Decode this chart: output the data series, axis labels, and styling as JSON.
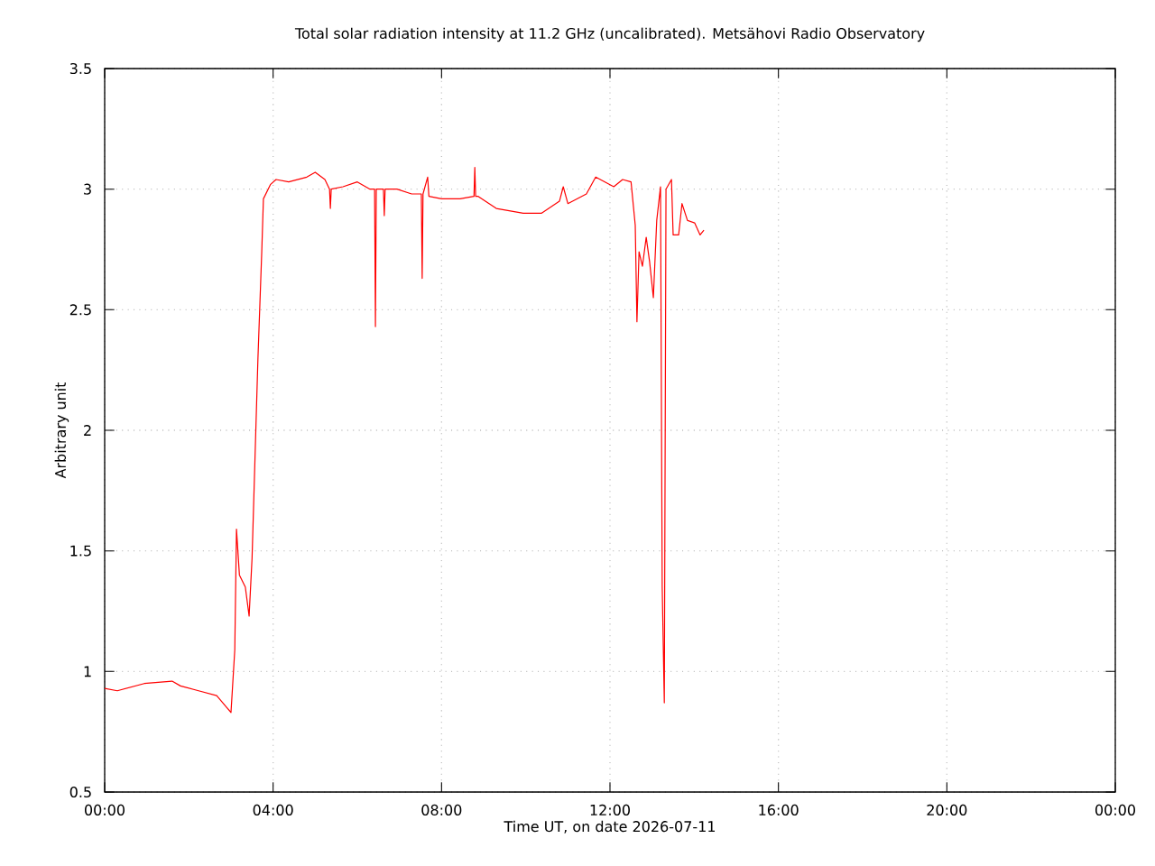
{
  "chart_data": {
    "type": "line",
    "title": "Total solar radiation intensity at 11.2 GHz (uncalibrated). Metsähovi Radio Observatory",
    "xlabel": "Time UT, on date 2026-07-11",
    "ylabel": "Arbitrary unit",
    "x": [
      0,
      0.3,
      0.94,
      1.6,
      1.8,
      2.23,
      2.66,
      2.9,
      3.0,
      3.09,
      3.13,
      3.2,
      3.34,
      3.43,
      3.5,
      3.64,
      3.73,
      3.77,
      3.94,
      4.07,
      4.37,
      4.8,
      5.0,
      5.23,
      5.34,
      5.36,
      5.38,
      5.66,
      6.0,
      6.3,
      6.41,
      6.43,
      6.45,
      6.51,
      6.62,
      6.64,
      6.66,
      6.94,
      7.29,
      7.52,
      7.54,
      7.56,
      7.67,
      7.7,
      8.0,
      8.44,
      8.77,
      8.79,
      8.81,
      8.87,
      9.3,
      9.94,
      10.37,
      10.8,
      10.89,
      11.0,
      11.44,
      11.66,
      12.09,
      12.3,
      12.5,
      12.6,
      12.64,
      12.69,
      12.77,
      12.86,
      12.94,
      13.03,
      13.11,
      13.2,
      13.24,
      13.29,
      13.33,
      13.46,
      13.5,
      13.63,
      13.71,
      13.84,
      14.01,
      14.14,
      14.23
    ],
    "series": [
      {
        "color": "#ff0000",
        "values": [
          0.93,
          0.92,
          0.95,
          0.96,
          0.94,
          0.92,
          0.9,
          0.85,
          0.83,
          1.09,
          1.59,
          1.4,
          1.35,
          1.23,
          1.47,
          2.3,
          2.74,
          2.96,
          3.02,
          3.04,
          3.03,
          3.05,
          3.07,
          3.04,
          3.0,
          2.92,
          3.0,
          3.01,
          3.03,
          3.0,
          3.0,
          2.43,
          3.0,
          3.0,
          3.0,
          2.89,
          3.0,
          3.0,
          2.98,
          2.98,
          2.63,
          2.98,
          3.05,
          2.97,
          2.96,
          2.96,
          2.97,
          3.09,
          2.97,
          2.97,
          2.92,
          2.9,
          2.9,
          2.95,
          3.01,
          2.94,
          2.98,
          3.05,
          3.01,
          3.04,
          3.03,
          2.85,
          2.45,
          2.74,
          2.68,
          2.8,
          2.7,
          2.55,
          2.87,
          3.01,
          1.35,
          0.87,
          3.0,
          3.04,
          2.81,
          2.81,
          2.94,
          2.87,
          2.86,
          2.81,
          2.83
        ]
      }
    ],
    "xlim": [
      0,
      24
    ],
    "xticks": [
      {
        "value": 0,
        "label": "00:00"
      },
      {
        "value": 4,
        "label": "04:00"
      },
      {
        "value": 8,
        "label": "08:00"
      },
      {
        "value": 12,
        "label": "12:00"
      },
      {
        "value": 16,
        "label": "16:00"
      },
      {
        "value": 20,
        "label": "20:00"
      },
      {
        "value": 24,
        "label": "00:00"
      }
    ],
    "ylim": [
      0.5,
      3.5
    ],
    "yticks": [
      0.5,
      1,
      1.5,
      2,
      2.5,
      3,
      3.5
    ],
    "grid": true,
    "line_style": "solid",
    "marker": "none"
  }
}
